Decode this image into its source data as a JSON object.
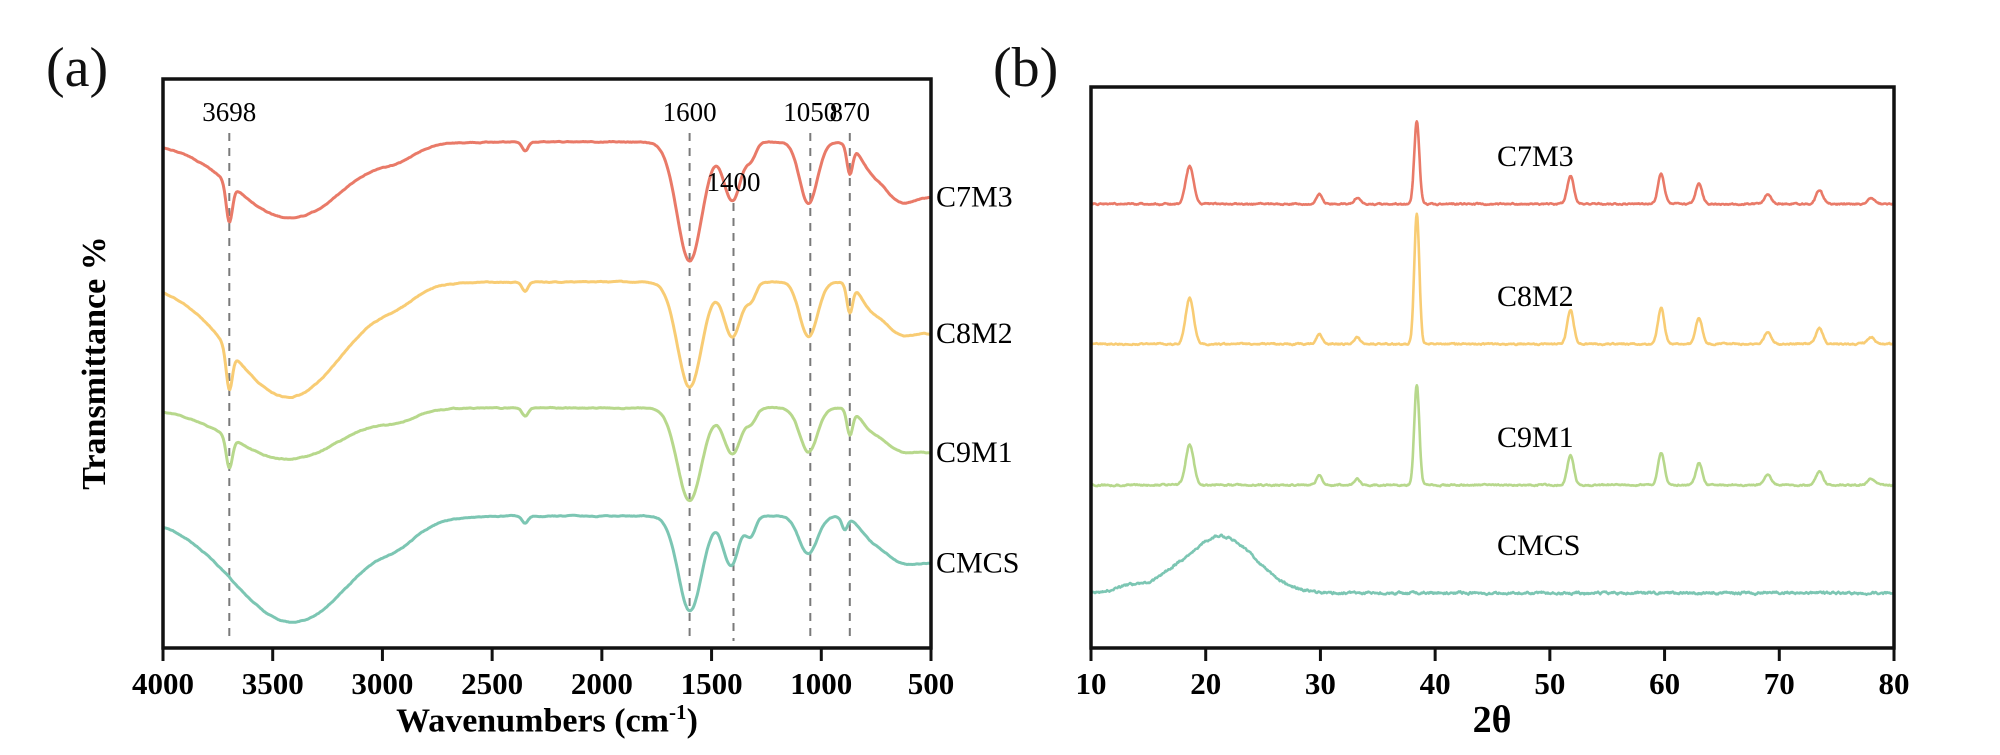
{
  "figure": {
    "panel_a_label": "(a)",
    "panel_b_label": "(b)",
    "background": "#ffffff"
  },
  "chart_data": [
    {
      "type": "line",
      "panel": "a",
      "technique": "FTIR",
      "title": "",
      "xlabel": "Wavenumbers (cm⁻¹)",
      "xlabel_parts": {
        "main": "Wavenumbers (cm",
        "sup": "-1",
        "end": ")"
      },
      "ylabel": "Transmittance %",
      "x_axis": {
        "start": 4000,
        "end": 500,
        "reversed": true,
        "ticks": [
          4000,
          3500,
          3000,
          2500,
          2000,
          1500,
          1000,
          500
        ]
      },
      "y_axis": {
        "ticks": [],
        "note": "stacked offset transmittance traces, no tick labels"
      },
      "guide_lines": [
        3698,
        1600,
        1400,
        1050,
        870
      ],
      "annotations": [
        {
          "text": "3698",
          "x": 3698,
          "row": 0
        },
        {
          "text": "1600",
          "x": 1600,
          "row": 0
        },
        {
          "text": "1400",
          "x": 1400,
          "row": 1
        },
        {
          "text": "1050",
          "x": 1050,
          "row": 0
        },
        {
          "text": "870",
          "x": 870,
          "row": 0
        }
      ],
      "series": [
        {
          "name": "C7M3",
          "color": "#E97A68",
          "bands": [
            [
              3698,
              14,
              0.4
            ],
            [
              3420,
              255,
              0.8
            ],
            [
              2925,
              80,
              0.1
            ],
            [
              2350,
              14,
              0.1
            ],
            [
              1600,
              58,
              1.25
            ],
            [
              1405,
              40,
              0.62
            ],
            [
              1318,
              22,
              0.15
            ],
            [
              1058,
              40,
              0.65
            ],
            [
              870,
              13,
              0.3
            ],
            [
              780,
              40,
              0.12
            ],
            [
              650,
              90,
              0.55
            ],
            [
              430,
              110,
              0.55
            ]
          ]
        },
        {
          "name": "C8M2",
          "color": "#F8CC74",
          "bands": [
            [
              3698,
              14,
              0.4
            ],
            [
              3430,
              260,
              1.15
            ],
            [
              2925,
              80,
              0.1
            ],
            [
              2350,
              14,
              0.09
            ],
            [
              1600,
              56,
              1.05
            ],
            [
              1405,
              40,
              0.55
            ],
            [
              1318,
              22,
              0.15
            ],
            [
              1058,
              40,
              0.55
            ],
            [
              870,
              13,
              0.28
            ],
            [
              780,
              40,
              0.12
            ],
            [
              650,
              90,
              0.45
            ],
            [
              430,
              110,
              0.5
            ]
          ]
        },
        {
          "name": "C9M1",
          "color": "#B7D88C",
          "bands": [
            [
              3698,
              14,
              0.35
            ],
            [
              3430,
              255,
              0.58
            ],
            [
              2925,
              80,
              0.09
            ],
            [
              2350,
              14,
              0.09
            ],
            [
              1600,
              56,
              1.05
            ],
            [
              1405,
              40,
              0.52
            ],
            [
              1318,
              22,
              0.14
            ],
            [
              1058,
              40,
              0.5
            ],
            [
              870,
              13,
              0.28
            ],
            [
              780,
              40,
              0.1
            ],
            [
              650,
              90,
              0.42
            ],
            [
              430,
              110,
              0.5
            ]
          ]
        },
        {
          "name": "CMCS",
          "color": "#7CC6B3",
          "bands": [
            [
              3410,
              275,
              1.12
            ],
            [
              2920,
              85,
              0.12
            ],
            [
              2350,
              14,
              0.08
            ],
            [
              1598,
              54,
              1.0
            ],
            [
              1412,
              36,
              0.52
            ],
            [
              1322,
              22,
              0.2
            ],
            [
              1060,
              42,
              0.4
            ],
            [
              893,
              13,
              0.13
            ],
            [
              780,
              45,
              0.1
            ],
            [
              645,
              95,
              0.42
            ],
            [
              430,
              110,
              0.45
            ]
          ]
        }
      ]
    },
    {
      "type": "line",
      "panel": "b",
      "technique": "XRD",
      "title": "",
      "xlabel": "2θ",
      "ylabel": "",
      "x_axis": {
        "start": 10,
        "end": 80,
        "reversed": false,
        "ticks": [
          10,
          20,
          30,
          40,
          50,
          60,
          70,
          80
        ]
      },
      "y_axis": {
        "ticks": [],
        "note": "stacked offset diffraction traces, no tick labels"
      },
      "series": [
        {
          "name": "C7M3",
          "color": "#E97A68",
          "noise": 1.0,
          "peaks": [
            [
              18.6,
              0.35,
              38
            ],
            [
              29.9,
              0.25,
              10
            ],
            [
              33.2,
              0.25,
              6
            ],
            [
              38.4,
              0.22,
              83
            ],
            [
              51.8,
              0.28,
              28
            ],
            [
              59.7,
              0.28,
              30
            ],
            [
              63.0,
              0.28,
              20
            ],
            [
              69.0,
              0.3,
              10
            ],
            [
              73.5,
              0.3,
              14
            ],
            [
              78.0,
              0.3,
              6
            ]
          ],
          "humps": []
        },
        {
          "name": "C8M2",
          "color": "#F8CC74",
          "noise": 1.0,
          "peaks": [
            [
              18.6,
              0.35,
              46
            ],
            [
              29.9,
              0.25,
              10
            ],
            [
              33.2,
              0.25,
              7
            ],
            [
              38.4,
              0.22,
              130
            ],
            [
              51.8,
              0.28,
              34
            ],
            [
              59.7,
              0.28,
              36
            ],
            [
              63.0,
              0.28,
              26
            ],
            [
              69.0,
              0.3,
              12
            ],
            [
              73.5,
              0.3,
              16
            ],
            [
              78.0,
              0.3,
              7
            ]
          ],
          "humps": []
        },
        {
          "name": "C9M1",
          "color": "#B7D88C",
          "noise": 1.0,
          "peaks": [
            [
              18.6,
              0.35,
              40
            ],
            [
              29.9,
              0.25,
              9
            ],
            [
              33.2,
              0.25,
              6
            ],
            [
              38.4,
              0.22,
              100
            ],
            [
              51.8,
              0.28,
              30
            ],
            [
              59.7,
              0.28,
              32
            ],
            [
              63.0,
              0.28,
              22
            ],
            [
              69.0,
              0.3,
              10
            ],
            [
              73.5,
              0.3,
              14
            ],
            [
              78.0,
              0.3,
              6
            ]
          ],
          "humps": []
        },
        {
          "name": "CMCS",
          "color": "#7CC6B3",
          "noise": 1.6,
          "peaks": [],
          "humps": [
            [
              21.3,
              3.0,
              57
            ],
            [
              13.5,
              1.3,
              7
            ],
            [
              16.8,
              1.0,
              5
            ]
          ]
        }
      ]
    }
  ]
}
